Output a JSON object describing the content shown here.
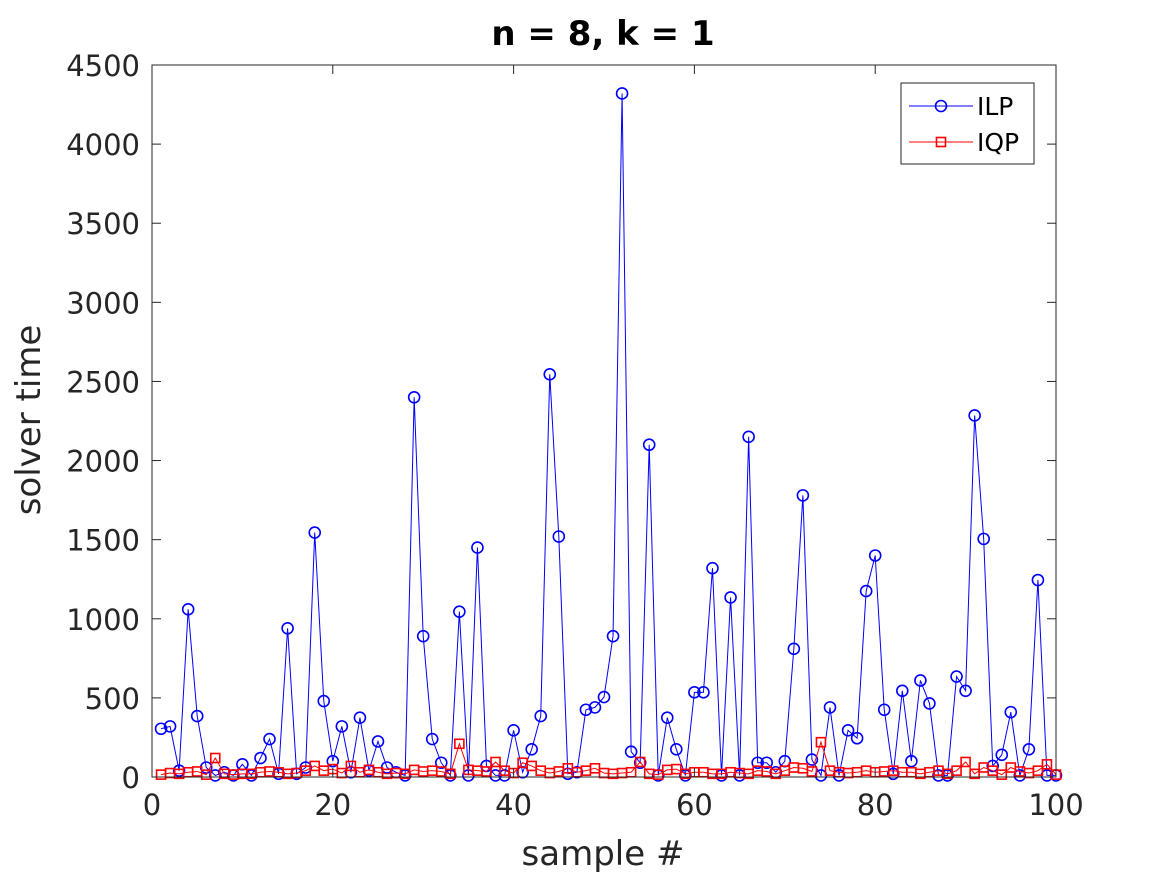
{
  "chart_data": {
    "type": "line",
    "title": "n = 8, k = 1",
    "xlabel": "sample #",
    "ylabel": "solver time",
    "xlim": [
      0,
      100
    ],
    "ylim": [
      0,
      4500
    ],
    "xticks": [
      0,
      20,
      40,
      60,
      80,
      100
    ],
    "yticks": [
      0,
      500,
      1000,
      1500,
      2000,
      2500,
      3000,
      3500,
      4000,
      4500
    ],
    "grid": false,
    "legend_position": "top-right",
    "x": [
      1,
      2,
      3,
      4,
      5,
      6,
      7,
      8,
      9,
      10,
      11,
      12,
      13,
      14,
      15,
      16,
      17,
      18,
      19,
      20,
      21,
      22,
      23,
      24,
      25,
      26,
      27,
      28,
      29,
      30,
      31,
      32,
      33,
      34,
      35,
      36,
      37,
      38,
      39,
      40,
      41,
      42,
      43,
      44,
      45,
      46,
      47,
      48,
      49,
      50,
      51,
      52,
      53,
      54,
      55,
      56,
      57,
      58,
      59,
      60,
      61,
      62,
      63,
      64,
      65,
      66,
      67,
      68,
      69,
      70,
      71,
      72,
      73,
      74,
      75,
      76,
      77,
      78,
      79,
      80,
      81,
      82,
      83,
      84,
      85,
      86,
      87,
      88,
      89,
      90,
      91,
      92,
      93,
      94,
      95,
      96,
      97,
      98,
      99,
      100
    ],
    "series": [
      {
        "name": "ILP",
        "color": "#0000ff",
        "marker": "circle",
        "values": [
          305,
          320,
          40,
          1060,
          385,
          60,
          10,
          30,
          10,
          80,
          10,
          120,
          240,
          20,
          940,
          20,
          60,
          1545,
          480,
          100,
          320,
          30,
          375,
          40,
          225,
          60,
          30,
          10,
          2400,
          890,
          240,
          90,
          10,
          1045,
          10,
          1450,
          70,
          10,
          10,
          295,
          30,
          175,
          385,
          2545,
          1520,
          20,
          30,
          425,
          440,
          505,
          890,
          4320,
          160,
          90,
          2100,
          10,
          375,
          175,
          10,
          535,
          535,
          1320,
          10,
          1135,
          10,
          2150,
          90,
          90,
          30,
          100,
          810,
          1780,
          110,
          10,
          440,
          10,
          295,
          245,
          1175,
          1400,
          425,
          20,
          545,
          100,
          610,
          465,
          10,
          10,
          635,
          545,
          2285,
          1505,
          70,
          140,
          410,
          10,
          175,
          1245,
          10,
          10
        ]
      },
      {
        "name": "IQP",
        "color": "#ff0000",
        "marker": "square",
        "values": [
          15,
          25,
          20,
          30,
          35,
          15,
          120,
          20,
          15,
          20,
          20,
          30,
          35,
          30,
          20,
          25,
          40,
          70,
          40,
          50,
          25,
          70,
          30,
          45,
          30,
          20,
          25,
          20,
          45,
          35,
          40,
          35,
          20,
          210,
          45,
          40,
          35,
          95,
          40,
          25,
          90,
          70,
          40,
          25,
          35,
          55,
          30,
          40,
          55,
          25,
          20,
          25,
          30,
          95,
          20,
          15,
          45,
          50,
          20,
          30,
          30,
          20,
          20,
          30,
          25,
          20,
          40,
          35,
          20,
          40,
          60,
          55,
          35,
          220,
          40,
          30,
          25,
          30,
          40,
          30,
          35,
          40,
          30,
          30,
          20,
          30,
          40,
          20,
          40,
          95,
          20,
          60,
          40,
          15,
          60,
          35,
          25,
          40,
          80,
          15
        ]
      }
    ]
  }
}
